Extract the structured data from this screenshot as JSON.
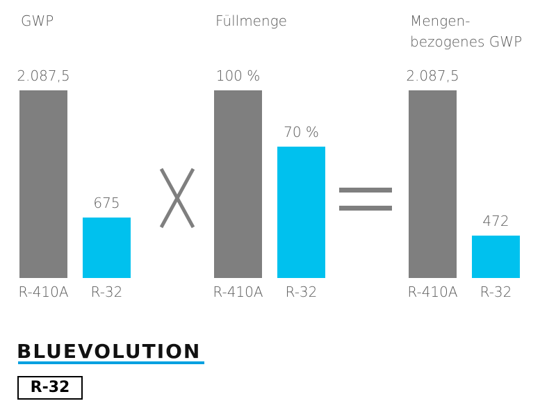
{
  "chart_data": [
    {
      "type": "bar",
      "title": "GWP",
      "categories": [
        "R-410A",
        "R-32"
      ],
      "values": [
        2087.5,
        675
      ],
      "value_labels": [
        "2.087,5",
        "675"
      ],
      "colors": [
        "#7f7f7f",
        "#00c1ee"
      ]
    },
    {
      "type": "bar",
      "title": "Füllmenge",
      "categories": [
        "R-410A",
        "R-32"
      ],
      "values": [
        100,
        70
      ],
      "value_labels": [
        "100 %",
        "70 %"
      ],
      "colors": [
        "#7f7f7f",
        "#00c1ee"
      ]
    },
    {
      "type": "bar",
      "title": "Mengen-\nbezogenes GWP",
      "categories": [
        "R-410A",
        "R-32"
      ],
      "values": [
        2087.5,
        472
      ],
      "value_labels": [
        "2.087,5",
        "472"
      ],
      "colors": [
        "#7f7f7f",
        "#00c1ee"
      ]
    }
  ],
  "logo": {
    "text": "BLUEVOLUTION",
    "badge": "R-32"
  }
}
